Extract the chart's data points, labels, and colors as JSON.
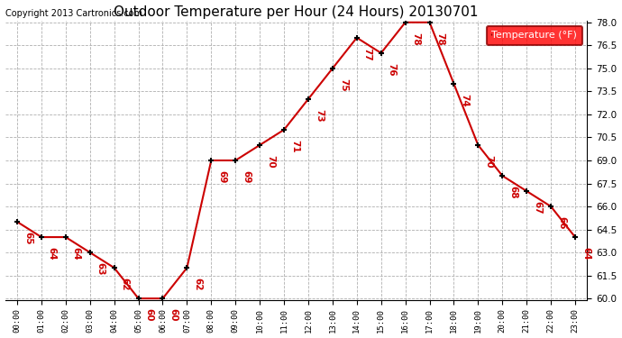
{
  "title": "Outdoor Temperature per Hour (24 Hours) 20130701",
  "copyright_text": "Copyright 2013 Cartronics.com",
  "legend_label": "Temperature (°F)",
  "hours": [
    0,
    1,
    2,
    3,
    4,
    5,
    6,
    7,
    8,
    9,
    10,
    11,
    12,
    13,
    14,
    15,
    16,
    17,
    18,
    19,
    20,
    21,
    22,
    23
  ],
  "temps": [
    65,
    64,
    64,
    63,
    62,
    60,
    60,
    62,
    69,
    69,
    70,
    71,
    73,
    75,
    77,
    76,
    78,
    78,
    74,
    70,
    68,
    67,
    66,
    64
  ],
  "ylim_min": 60.0,
  "ylim_max": 78.0,
  "yticks": [
    60.0,
    61.5,
    63.0,
    64.5,
    66.0,
    67.5,
    69.0,
    70.5,
    72.0,
    73.5,
    75.0,
    76.5,
    78.0
  ],
  "line_color": "#cc0000",
  "marker_color": "black",
  "label_color": "#cc0000",
  "bg_color": "white",
  "grid_color": "#b0b0b0",
  "title_fontsize": 11,
  "annotation_fontsize": 7.5,
  "copyright_fontsize": 7,
  "legend_fontsize": 8
}
